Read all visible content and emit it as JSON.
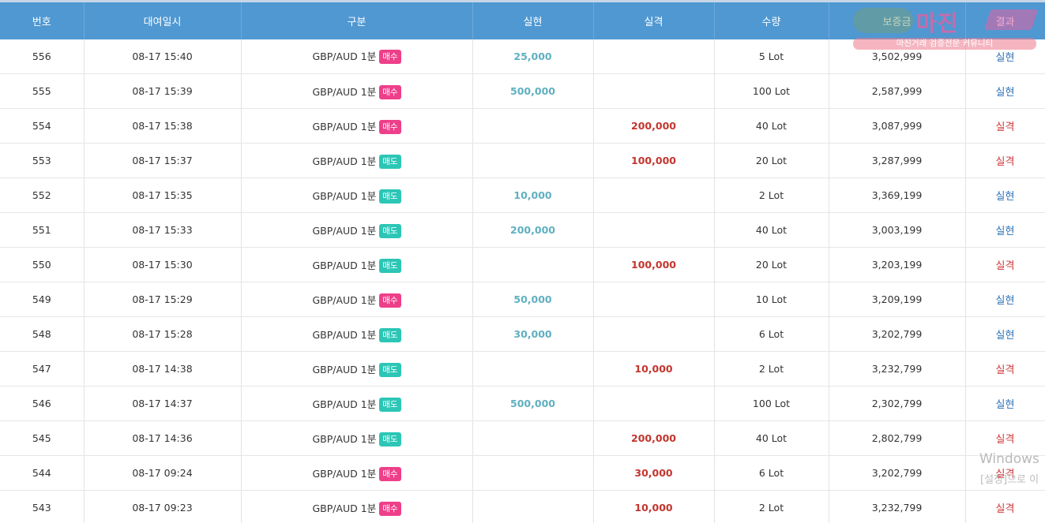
{
  "table": {
    "headers": [
      "번호",
      "대여일시",
      "구분",
      "실현",
      "실격",
      "수량",
      "보증금",
      "결과"
    ],
    "rows": [
      {
        "no": "556",
        "datetime": "08-17 15:40",
        "product": "GBP/AUD 1분",
        "side": "매수",
        "side_type": "buy",
        "profit": "25,000",
        "loss": "",
        "qty": "5 Lot",
        "deposit": "3,502,999",
        "result": "실현",
        "result_type": "win"
      },
      {
        "no": "555",
        "datetime": "08-17 15:39",
        "product": "GBP/AUD 1분",
        "side": "매수",
        "side_type": "buy",
        "profit": "500,000",
        "loss": "",
        "qty": "100 Lot",
        "deposit": "2,587,999",
        "result": "실현",
        "result_type": "win"
      },
      {
        "no": "554",
        "datetime": "08-17 15:38",
        "product": "GBP/AUD 1분",
        "side": "매수",
        "side_type": "buy",
        "profit": "",
        "loss": "200,000",
        "qty": "40 Lot",
        "deposit": "3,087,999",
        "result": "실격",
        "result_type": "loss"
      },
      {
        "no": "553",
        "datetime": "08-17 15:37",
        "product": "GBP/AUD 1분",
        "side": "매도",
        "side_type": "sell",
        "profit": "",
        "loss": "100,000",
        "qty": "20 Lot",
        "deposit": "3,287,999",
        "result": "실격",
        "result_type": "loss"
      },
      {
        "no": "552",
        "datetime": "08-17 15:35",
        "product": "GBP/AUD 1분",
        "side": "매도",
        "side_type": "sell",
        "profit": "10,000",
        "loss": "",
        "qty": "2 Lot",
        "deposit": "3,369,199",
        "result": "실현",
        "result_type": "win"
      },
      {
        "no": "551",
        "datetime": "08-17 15:33",
        "product": "GBP/AUD 1분",
        "side": "매도",
        "side_type": "sell",
        "profit": "200,000",
        "loss": "",
        "qty": "40 Lot",
        "deposit": "3,003,199",
        "result": "실현",
        "result_type": "win"
      },
      {
        "no": "550",
        "datetime": "08-17 15:30",
        "product": "GBP/AUD 1분",
        "side": "매도",
        "side_type": "sell",
        "profit": "",
        "loss": "100,000",
        "qty": "20 Lot",
        "deposit": "3,203,199",
        "result": "실격",
        "result_type": "loss"
      },
      {
        "no": "549",
        "datetime": "08-17 15:29",
        "product": "GBP/AUD 1분",
        "side": "매수",
        "side_type": "buy",
        "profit": "50,000",
        "loss": "",
        "qty": "10 Lot",
        "deposit": "3,209,199",
        "result": "실현",
        "result_type": "win"
      },
      {
        "no": "548",
        "datetime": "08-17 15:28",
        "product": "GBP/AUD 1분",
        "side": "매도",
        "side_type": "sell",
        "profit": "30,000",
        "loss": "",
        "qty": "6 Lot",
        "deposit": "3,202,799",
        "result": "실현",
        "result_type": "win"
      },
      {
        "no": "547",
        "datetime": "08-17 14:38",
        "product": "GBP/AUD 1분",
        "side": "매도",
        "side_type": "sell",
        "profit": "",
        "loss": "10,000",
        "qty": "2 Lot",
        "deposit": "3,232,799",
        "result": "실격",
        "result_type": "loss"
      },
      {
        "no": "546",
        "datetime": "08-17 14:37",
        "product": "GBP/AUD 1분",
        "side": "매도",
        "side_type": "sell",
        "profit": "500,000",
        "loss": "",
        "qty": "100 Lot",
        "deposit": "2,302,799",
        "result": "실현",
        "result_type": "win"
      },
      {
        "no": "545",
        "datetime": "08-17 14:36",
        "product": "GBP/AUD 1분",
        "side": "매도",
        "side_type": "sell",
        "profit": "",
        "loss": "200,000",
        "qty": "40 Lot",
        "deposit": "2,802,799",
        "result": "실격",
        "result_type": "loss"
      },
      {
        "no": "544",
        "datetime": "08-17 09:24",
        "product": "GBP/AUD 1분",
        "side": "매수",
        "side_type": "buy",
        "profit": "",
        "loss": "30,000",
        "qty": "6 Lot",
        "deposit": "3,202,799",
        "result": "실격",
        "result_type": "loss"
      },
      {
        "no": "543",
        "datetime": "08-17 09:23",
        "product": "GBP/AUD 1분",
        "side": "매수",
        "side_type": "buy",
        "profit": "",
        "loss": "10,000",
        "qty": "2 Lot",
        "deposit": "3,232,799",
        "result": "실격",
        "result_type": "loss"
      }
    ]
  },
  "watermark": {
    "logo_text": "마진",
    "tagline": "마진거래 검증전문 커뮤니티"
  },
  "windows_activation": {
    "title": "Windows",
    "subtitle": "[설정]으로 이"
  },
  "colors": {
    "header_bg": "#4f98d2",
    "buy_badge": "#ee3f8a",
    "sell_badge": "#2cc6b6",
    "profit_text": "#5fb0c1",
    "loss_text": "#c3352e",
    "result_win": "#2e72b8",
    "result_loss": "#d0393b"
  }
}
